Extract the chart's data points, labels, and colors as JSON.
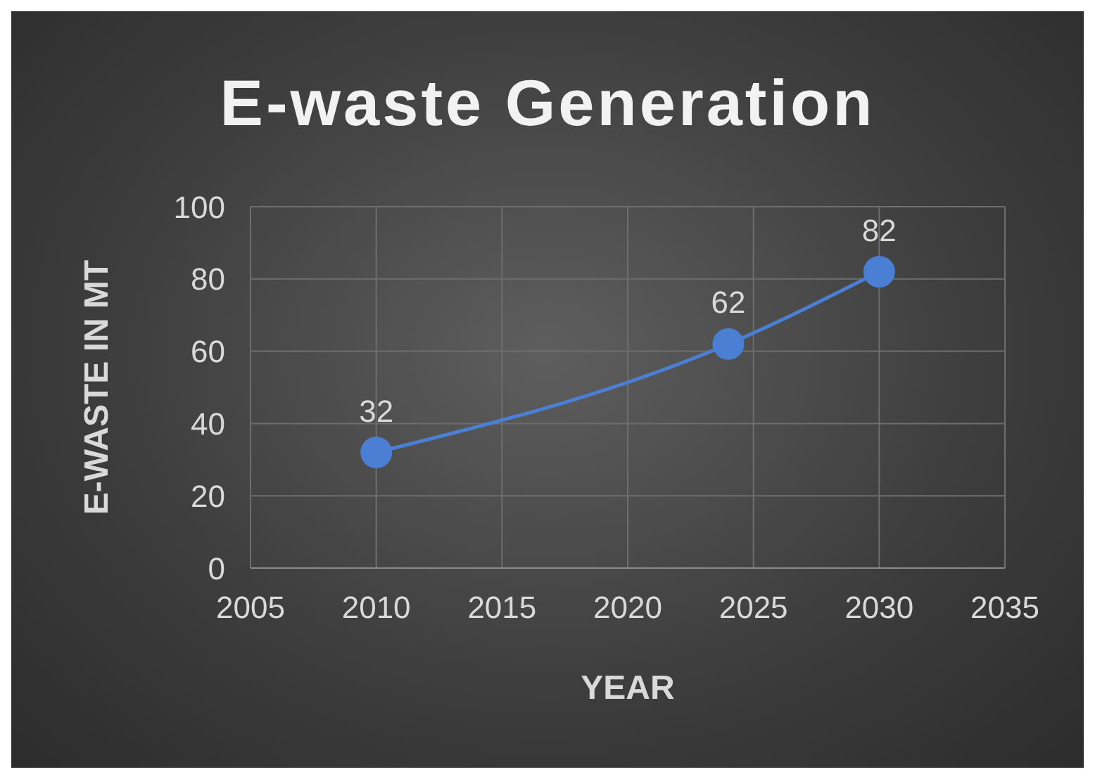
{
  "chart_data": {
    "type": "line",
    "title": "E-waste Generation",
    "xlabel": "YEAR",
    "ylabel": "E-WASTE IN MT",
    "x": [
      2010,
      2024,
      2030
    ],
    "series": [
      {
        "color": "#4a7fd4",
        "values": [
          32,
          62,
          82
        ]
      }
    ],
    "xlim": [
      2005,
      2035
    ],
    "xticks": [
      2005,
      2010,
      2015,
      2020,
      2025,
      2030,
      2035
    ],
    "ylim": [
      0,
      100
    ],
    "yticks": [
      0,
      20,
      40,
      60,
      80,
      100
    ],
    "grid": true,
    "marker": "circle",
    "line_style": "solid",
    "data_labels": true
  }
}
